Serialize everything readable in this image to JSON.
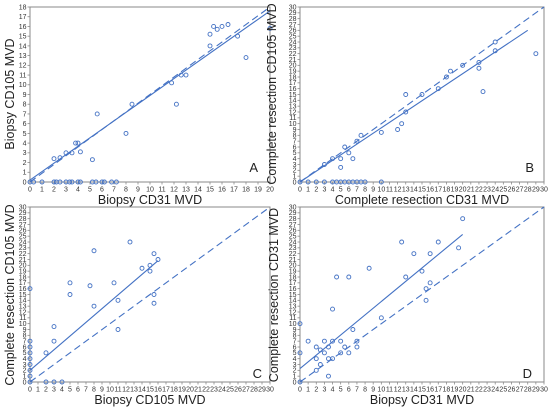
{
  "chart_data": [
    {
      "type": "scatter",
      "panel": "A",
      "xlabel": "Biopsy CD31 MVD",
      "ylabel": "Biopsy CD105 MVD",
      "xlim": [
        0,
        20
      ],
      "ylim": [
        0,
        18
      ],
      "xticks": [
        0,
        1,
        2,
        3,
        4,
        5,
        6,
        7,
        8,
        9,
        10,
        11,
        12,
        13,
        14,
        15,
        16,
        17,
        18,
        19,
        20
      ],
      "yticks": [
        0,
        1,
        2,
        3,
        4,
        5,
        6,
        7,
        8,
        9,
        10,
        11,
        12,
        13,
        14,
        15,
        16,
        17,
        18
      ],
      "grid": false,
      "color": "#4472c4",
      "points": [
        [
          0,
          0
        ],
        [
          0.3,
          0
        ],
        [
          1,
          0
        ],
        [
          2,
          0
        ],
        [
          2.2,
          0
        ],
        [
          2.5,
          0
        ],
        [
          3,
          0
        ],
        [
          3.3,
          0
        ],
        [
          3.5,
          0
        ],
        [
          4,
          0
        ],
        [
          4.2,
          0
        ],
        [
          5.2,
          0
        ],
        [
          5.5,
          0
        ],
        [
          6,
          0
        ],
        [
          6.2,
          0
        ],
        [
          6.8,
          0
        ],
        [
          7.2,
          0
        ],
        [
          2,
          2.4
        ],
        [
          2.5,
          2.5
        ],
        [
          3,
          3
        ],
        [
          3.5,
          3
        ],
        [
          3.8,
          4
        ],
        [
          4,
          4
        ],
        [
          4.2,
          3.1
        ],
        [
          5.2,
          2.3
        ],
        [
          5.6,
          7
        ],
        [
          8,
          5
        ],
        [
          8.5,
          8
        ],
        [
          11.8,
          10.2
        ],
        [
          12.2,
          8
        ],
        [
          12.6,
          11
        ],
        [
          13,
          11
        ],
        [
          15,
          14
        ],
        [
          15,
          15.2
        ],
        [
          15.3,
          16
        ],
        [
          15.6,
          15.7
        ],
        [
          16,
          16
        ],
        [
          16.5,
          16.2
        ],
        [
          17.3,
          15
        ],
        [
          18,
          12.8
        ],
        [
          20,
          15.8
        ]
      ],
      "fit_line": [
        [
          0,
          0.2
        ],
        [
          20,
          17.6
        ]
      ],
      "identity_line": [
        [
          0,
          0
        ],
        [
          20,
          18
        ]
      ]
    },
    {
      "type": "scatter",
      "panel": "B",
      "xlabel": "Complete resection CD31 MVD",
      "ylabel": "Complete resection CD105 MVD",
      "xlim": [
        0,
        30
      ],
      "ylim": [
        0,
        30
      ],
      "xticks": [
        0,
        1,
        2,
        3,
        4,
        5,
        6,
        7,
        8,
        9,
        10,
        11,
        12,
        13,
        14,
        15,
        16,
        17,
        18,
        19,
        20,
        21,
        22,
        23,
        24,
        25,
        26,
        27,
        28,
        29,
        30
      ],
      "yticks": [
        0,
        1,
        2,
        3,
        4,
        5,
        6,
        7,
        8,
        9,
        10,
        11,
        12,
        13,
        14,
        15,
        16,
        17,
        18,
        19,
        20,
        21,
        22,
        23,
        24,
        25,
        26,
        27,
        28,
        29,
        30
      ],
      "grid": false,
      "color": "#4472c4",
      "points": [
        [
          0,
          0
        ],
        [
          1,
          0
        ],
        [
          2,
          0
        ],
        [
          3,
          0
        ],
        [
          4,
          0
        ],
        [
          4.5,
          0
        ],
        [
          5,
          0
        ],
        [
          5.5,
          0
        ],
        [
          6,
          0
        ],
        [
          6.5,
          0
        ],
        [
          7,
          0
        ],
        [
          7.5,
          0
        ],
        [
          8,
          0
        ],
        [
          10,
          0
        ],
        [
          3,
          3
        ],
        [
          4,
          4
        ],
        [
          5,
          2.5
        ],
        [
          5,
          4
        ],
        [
          5.5,
          6
        ],
        [
          6,
          5
        ],
        [
          6.5,
          4
        ],
        [
          7,
          7
        ],
        [
          7.5,
          8
        ],
        [
          10,
          8.5
        ],
        [
          12,
          9
        ],
        [
          12.5,
          10
        ],
        [
          13,
          12
        ],
        [
          13,
          15
        ],
        [
          15,
          15
        ],
        [
          17,
          16
        ],
        [
          18,
          18
        ],
        [
          18.5,
          19
        ],
        [
          20,
          20
        ],
        [
          22,
          19.5
        ],
        [
          22,
          20.5
        ],
        [
          22.5,
          15.5
        ],
        [
          24,
          24
        ],
        [
          24,
          22.5
        ],
        [
          29,
          22
        ]
      ],
      "fit_line": [
        [
          0,
          0
        ],
        [
          28,
          26
        ]
      ],
      "identity_line": [
        [
          0,
          0
        ],
        [
          30,
          30
        ]
      ]
    },
    {
      "type": "scatter",
      "panel": "C",
      "xlabel": "Biopsy CD105 MVD",
      "ylabel": "Complete resection CD105 MVD",
      "xlim": [
        0,
        30
      ],
      "ylim": [
        0,
        30
      ],
      "xticks": [
        0,
        1,
        2,
        3,
        4,
        5,
        6,
        7,
        8,
        9,
        10,
        11,
        12,
        13,
        14,
        15,
        16,
        17,
        18,
        19,
        20,
        21,
        22,
        23,
        24,
        25,
        26,
        27,
        28,
        29,
        30
      ],
      "yticks": [
        0,
        1,
        2,
        3,
        4,
        5,
        6,
        7,
        8,
        9,
        10,
        11,
        12,
        13,
        14,
        15,
        16,
        17,
        18,
        19,
        20,
        21,
        22,
        23,
        24,
        25,
        26,
        27,
        28,
        29,
        30
      ],
      "grid": false,
      "color": "#4472c4",
      "points": [
        [
          0,
          0
        ],
        [
          0,
          1
        ],
        [
          0,
          2
        ],
        [
          0,
          3
        ],
        [
          0,
          4
        ],
        [
          0,
          5
        ],
        [
          0,
          6
        ],
        [
          0,
          7
        ],
        [
          0,
          16
        ],
        [
          2,
          0
        ],
        [
          2,
          5
        ],
        [
          3,
          0
        ],
        [
          3,
          7
        ],
        [
          3,
          9.5
        ],
        [
          4,
          0
        ],
        [
          5,
          15
        ],
        [
          5,
          17
        ],
        [
          7.5,
          16.5
        ],
        [
          8,
          13
        ],
        [
          8,
          22.5
        ],
        [
          10.5,
          17
        ],
        [
          11,
          14
        ],
        [
          11,
          9
        ],
        [
          12.5,
          24
        ],
        [
          14,
          19.5
        ],
        [
          15,
          20
        ],
        [
          15,
          19
        ],
        [
          15.5,
          15
        ],
        [
          15.5,
          13.5
        ],
        [
          15.5,
          22
        ],
        [
          16,
          21
        ]
      ],
      "fit_line": [
        [
          0,
          2
        ],
        [
          16,
          20.8
        ]
      ],
      "identity_line": [
        [
          0,
          0
        ],
        [
          30,
          30
        ]
      ]
    },
    {
      "type": "scatter",
      "panel": "D",
      "xlabel": "Biopsy CD31 MVD",
      "ylabel": "Complete resection CD31 MVD",
      "xlim": [
        0,
        30
      ],
      "ylim": [
        0,
        30
      ],
      "xticks": [
        0,
        1,
        2,
        3,
        4,
        5,
        6,
        7,
        8,
        9,
        10,
        11,
        12,
        13,
        14,
        15,
        16,
        17,
        18,
        19,
        20,
        21,
        22,
        23,
        24,
        25,
        26,
        27,
        28,
        29,
        30
      ],
      "yticks": [
        0,
        1,
        2,
        3,
        4,
        5,
        6,
        7,
        8,
        9,
        10,
        11,
        12,
        13,
        14,
        15,
        16,
        17,
        18,
        19,
        20,
        21,
        22,
        23,
        24,
        25,
        26,
        27,
        28,
        29,
        30
      ],
      "grid": false,
      "color": "#4472c4",
      "points": [
        [
          0,
          0
        ],
        [
          0,
          5
        ],
        [
          0,
          10
        ],
        [
          1,
          7
        ],
        [
          2,
          2
        ],
        [
          2,
          4
        ],
        [
          2,
          6
        ],
        [
          2.5,
          5.5
        ],
        [
          2.5,
          3
        ],
        [
          3,
          5
        ],
        [
          3,
          7
        ],
        [
          3.5,
          1
        ],
        [
          3.5,
          4
        ],
        [
          3.5,
          6
        ],
        [
          4,
          4
        ],
        [
          4,
          7
        ],
        [
          4,
          12.5
        ],
        [
          4.5,
          18
        ],
        [
          5,
          5
        ],
        [
          5,
          7
        ],
        [
          5.5,
          6
        ],
        [
          6,
          5
        ],
        [
          6,
          18
        ],
        [
          6.5,
          9
        ],
        [
          7,
          6
        ],
        [
          7,
          7
        ],
        [
          8.5,
          19.5
        ],
        [
          10,
          11
        ],
        [
          12.5,
          24
        ],
        [
          13,
          18
        ],
        [
          14,
          22
        ],
        [
          15,
          19
        ],
        [
          15.5,
          14
        ],
        [
          15.5,
          16
        ],
        [
          16,
          17
        ],
        [
          16,
          22
        ],
        [
          17,
          24
        ],
        [
          19.5,
          23
        ],
        [
          20,
          28
        ]
      ],
      "fit_line": [
        [
          0,
          2.3
        ],
        [
          20,
          25.3
        ]
      ],
      "identity_line": [
        [
          0,
          0
        ],
        [
          30,
          30
        ]
      ]
    }
  ],
  "panels": [
    {
      "tag": "A",
      "xlabel": "Biopsy CD31 MVD",
      "ylabel": "Biopsy CD105 MVD"
    },
    {
      "tag": "B",
      "xlabel": "Complete resection CD31 MVD",
      "ylabel": "Complete resection CD105 MVD"
    },
    {
      "tag": "C",
      "xlabel": "Biopsy CD105 MVD",
      "ylabel": "Complete resection CD105 MVD"
    },
    {
      "tag": "D",
      "xlabel": "Biopsy CD31 MVD",
      "ylabel": "Complete resection CD31 MVD"
    }
  ],
  "colors": {
    "marker": "#4472c4",
    "line": "#4472c4",
    "frame": "#8a8a8a"
  }
}
